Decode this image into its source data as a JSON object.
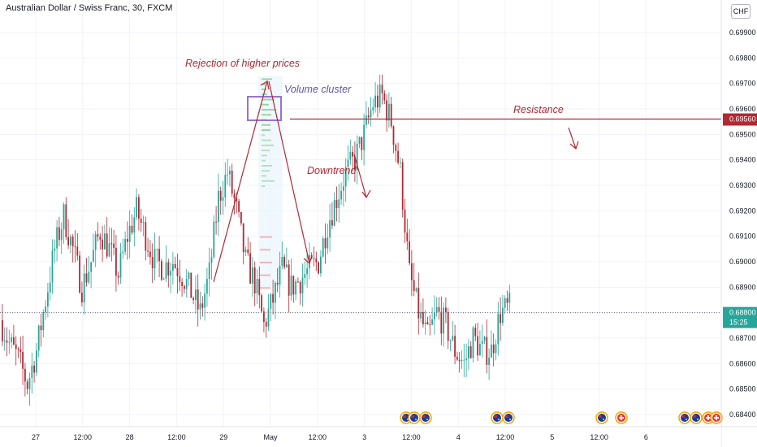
{
  "header": {
    "title": "Australian Dollar / Swiss Franc, 30, FXCM",
    "currency_badge": "CHF"
  },
  "colors": {
    "up": "#26a69a",
    "down": "#b22833",
    "annotation": "#b22833",
    "volume_box": "#9575cd",
    "volume_text": "#5e55a8",
    "resistance_line": "#b22833",
    "grid": "#f0f3fa"
  },
  "chart_data": {
    "type": "candlestick",
    "symbol": "Australian Dollar / Swiss Franc",
    "timeframe": "30",
    "exchange": "FXCM",
    "ylim": [
      0.6835,
      0.6997
    ],
    "y_ticks": [
      "0.69900",
      "0.69800",
      "0.69700",
      "0.69600",
      "0.69500",
      "0.69400",
      "0.69300",
      "0.69200",
      "0.69100",
      "0.69000",
      "0.68900",
      "0.68800",
      "0.68700",
      "0.68600",
      "0.68500",
      "0.68400"
    ],
    "x_ticks": [
      "27",
      "12:00",
      "28",
      "12:00",
      "29",
      "May",
      "12:00",
      "3",
      "12:00",
      "4",
      "12:00",
      "5",
      "12:00",
      "6"
    ],
    "last_price": "0.68800",
    "countdown": "15:25",
    "resistance": {
      "value": 0.6956,
      "label": "0.69560",
      "text": "Resistance"
    },
    "annotations": {
      "rejection": "Rejection of higher prices",
      "volume_cluster": "Volume cluster",
      "downtrend": "Downtrend",
      "resistance": "Resistance"
    },
    "waypoints": [
      0.6877,
      0.6868,
      0.6862,
      0.6852,
      0.6865,
      0.6885,
      0.6905,
      0.6918,
      0.6905,
      0.689,
      0.69,
      0.6912,
      0.6905,
      0.6895,
      0.691,
      0.692,
      0.691,
      0.69,
      0.6898,
      0.69,
      0.6895,
      0.6888,
      0.688,
      0.6895,
      0.6925,
      0.6935,
      0.692,
      0.69,
      0.6892,
      0.6875,
      0.6885,
      0.6897,
      0.689,
      0.6893,
      0.6897,
      0.69,
      0.6915,
      0.6925,
      0.6935,
      0.694,
      0.695,
      0.6962,
      0.6965,
      0.6955,
      0.6935,
      0.6895,
      0.688,
      0.687,
      0.688,
      0.6875,
      0.6865,
      0.686,
      0.687,
      0.6865,
      0.6865,
      0.688,
      0.6882
    ],
    "volume_profile_bottom": [
      0.691,
      0.6905,
      0.69,
      0.6895,
      0.689
    ],
    "calendar_events": [
      "flag-AU",
      "flag-AU",
      "flag-AU",
      "flag-AU",
      "flag-AU",
      "flag-CH",
      "flag-AU",
      "flag-AU",
      "flag-CH"
    ]
  }
}
